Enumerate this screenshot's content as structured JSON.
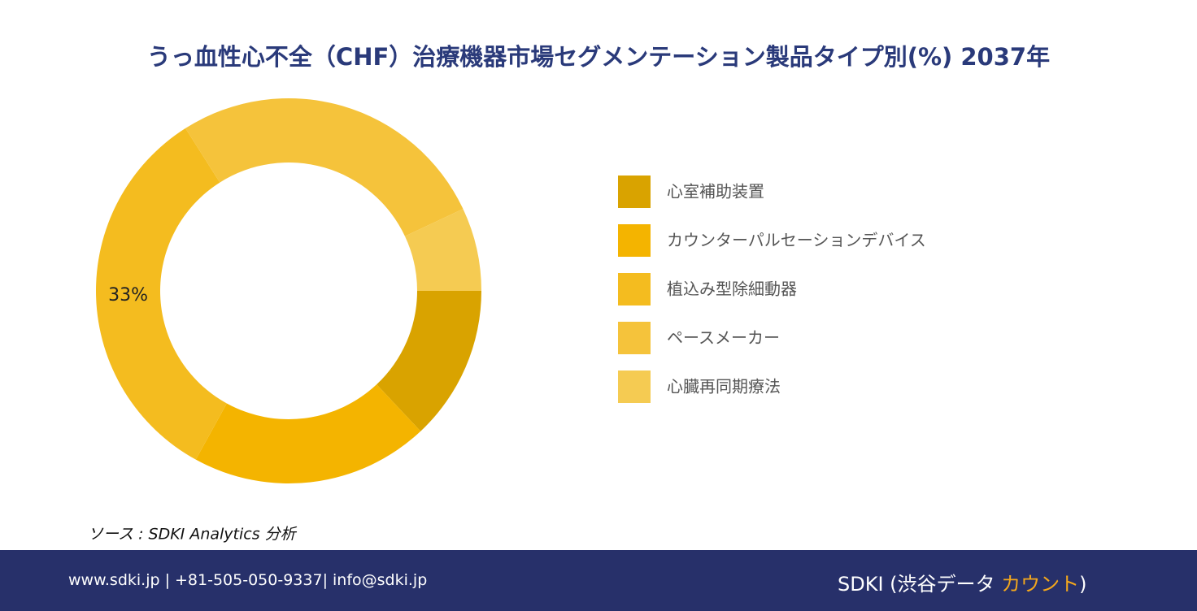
{
  "chart_data": {
    "type": "donut",
    "title": "うっ血性心不全（CHF）治療機器市場セグメンテーション製品タイプ別(%) 2037年",
    "categories": [
      "心室補助装置",
      "カウンターパルセーションデバイス",
      "植込み型除細動器",
      "ペースメーカー",
      "心臓再同期療法"
    ],
    "values": [
      13,
      20,
      33,
      27,
      7
    ],
    "value_labels": [
      null,
      null,
      "33%",
      null,
      null
    ],
    "colors": [
      "#D9A300",
      "#F4B400",
      "#F4BC1F",
      "#F5C33B",
      "#F5CB52"
    ],
    "legend": "right"
  },
  "source": "ソース : SDKI Analytics 分析",
  "footer": {
    "contact": "www.sdki.jp | +81-505-050-9337| info@sdki.jp",
    "logo": [
      "SDKI (渋谷データ ",
      "カウント",
      ")"
    ]
  }
}
